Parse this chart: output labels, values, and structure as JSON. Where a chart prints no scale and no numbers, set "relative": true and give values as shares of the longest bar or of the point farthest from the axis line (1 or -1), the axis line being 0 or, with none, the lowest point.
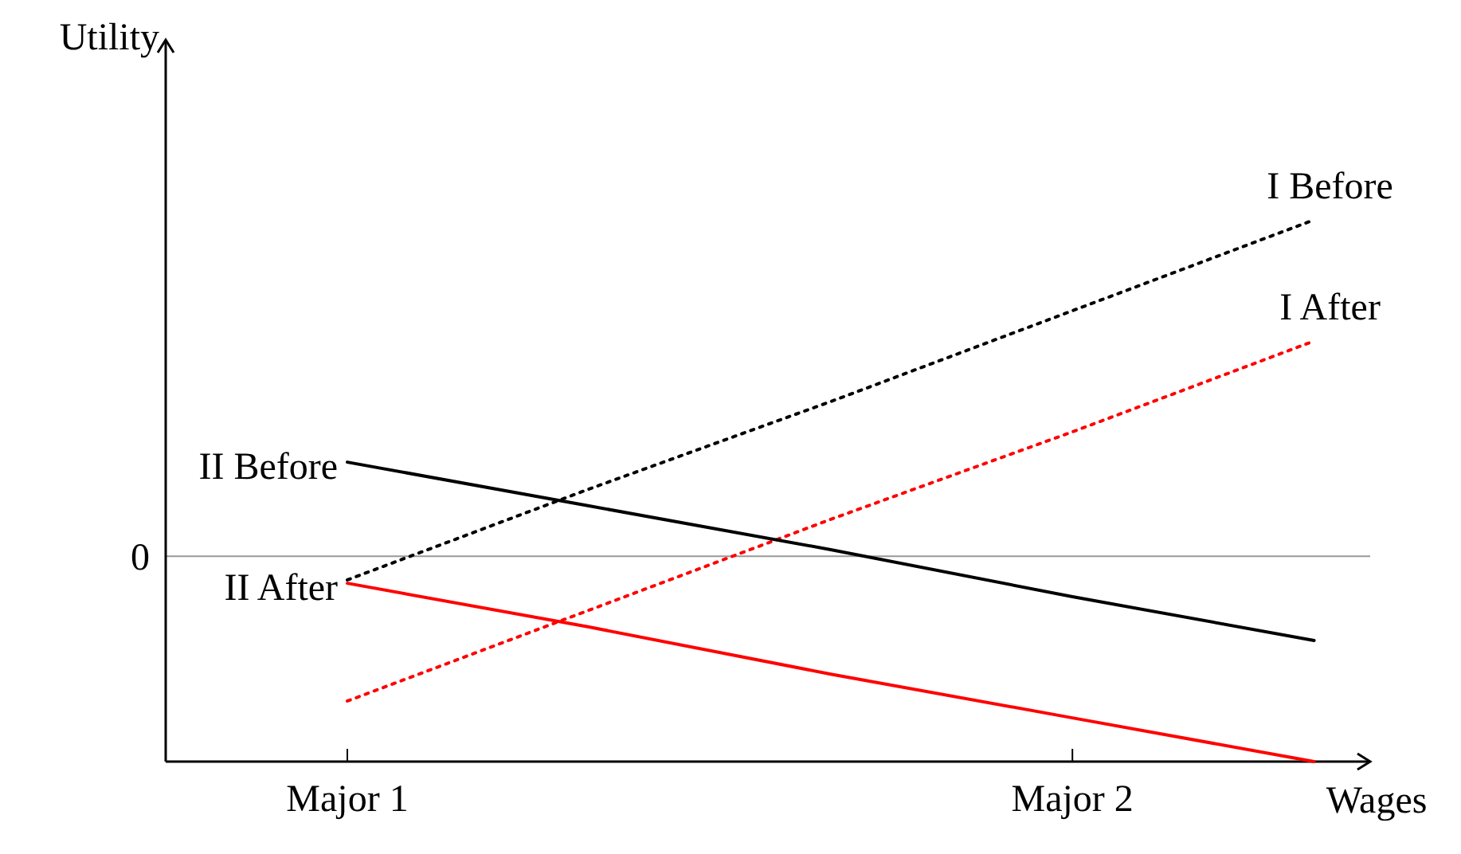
{
  "chart_data": {
    "type": "line",
    "relative": true,
    "xlabel": "Wages",
    "ylabel": "Utility",
    "categories": [
      "Major 1",
      null,
      null,
      "Major 2",
      null
    ],
    "series": [
      {
        "name": "I Before",
        "color": "#000000",
        "line_style": "dotted",
        "values": [
          -0.07,
          0.2,
          0.46,
          0.73,
          1.0
        ]
      },
      {
        "name": "I After",
        "color": "#ff0000",
        "line_style": "dotted",
        "values": [
          -0.43,
          -0.16,
          0.11,
          0.37,
          0.64
        ]
      },
      {
        "name": "II Before",
        "color": "#000000",
        "line_style": "solid",
        "values": [
          0.28,
          0.15,
          0.02,
          -0.12,
          -0.25
        ]
      },
      {
        "name": "II After",
        "color": "#ff0000",
        "line_style": "solid",
        "values": [
          -0.08,
          -0.21,
          -0.35,
          -0.48,
          -0.61
        ]
      }
    ],
    "ref_lines": [
      {
        "axis": "y",
        "value": 0,
        "label": "0",
        "color": "#999999"
      }
    ],
    "marker": "none"
  }
}
